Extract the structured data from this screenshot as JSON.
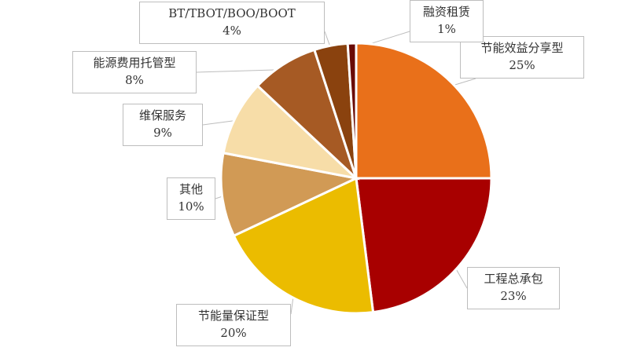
{
  "chart_data": {
    "type": "pie",
    "start": "12 o'clock, clockwise",
    "slices": [
      {
        "label": "节能效益分享型",
        "value": 25,
        "display": "25%",
        "color": "#E9701A"
      },
      {
        "label": "工程总承包",
        "value": 23,
        "display": "23%",
        "color": "#A80000"
      },
      {
        "label": "节能量保证型",
        "value": 20,
        "display": "20%",
        "color": "#EBBC00"
      },
      {
        "label": "其他",
        "value": 10,
        "display": "10%",
        "color": "#D19A55"
      },
      {
        "label": "维保服务",
        "value": 9,
        "display": "9%",
        "color": "#F7DDA8"
      },
      {
        "label": "能源费用托管型",
        "value": 8,
        "display": "8%",
        "color": "#A65A24"
      },
      {
        "label": "BT/TBOT/BOO/BOOT",
        "value": 4,
        "display": "4%",
        "color": "#8A420E"
      },
      {
        "label": "融资租赁",
        "value": 1,
        "display": "1%",
        "color": "#6A0A05"
      }
    ]
  }
}
